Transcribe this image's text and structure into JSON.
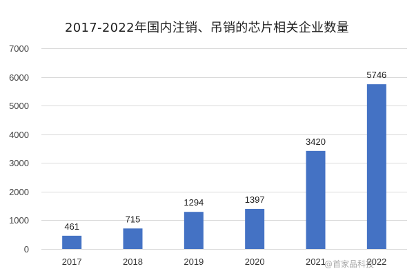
{
  "chart_data": {
    "type": "bar",
    "title": "2017-2022年国内注销、吊销的芯片相关企业数量",
    "categories": [
      "2017",
      "2018",
      "2019",
      "2020",
      "2021",
      "2022"
    ],
    "values": [
      461,
      715,
      1294,
      1397,
      3420,
      5746
    ],
    "data_labels": [
      "461",
      "715",
      "1294",
      "1397",
      "3420",
      "5746"
    ],
    "ylim": [
      0,
      7000
    ],
    "yticks": [
      0,
      1000,
      2000,
      3000,
      4000,
      5000,
      6000,
      7000
    ],
    "ytick_labels": [
      "0",
      "1000",
      "2000",
      "3000",
      "4000",
      "5000",
      "6000",
      "7000"
    ],
    "xlabel": "",
    "ylabel": "",
    "grid": true,
    "bar_color": "#4472c4",
    "grid_color": "#d9d9d9"
  },
  "watermark": "@首家品科技"
}
